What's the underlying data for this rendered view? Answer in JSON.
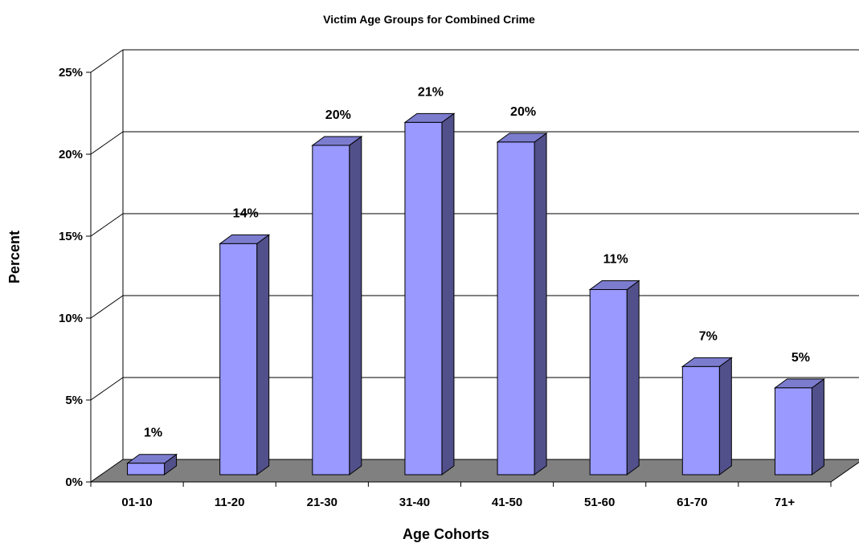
{
  "chart_data": {
    "type": "bar",
    "title": "Victim Age Groups for Combined Crime",
    "xlabel": "Age Cohorts",
    "ylabel": "Percent",
    "categories": [
      "01-10",
      "11-20",
      "21-30",
      "31-40",
      "41-50",
      "51-60",
      "61-70",
      "71+"
    ],
    "values": [
      0.7,
      14.1,
      20.1,
      21.5,
      20.3,
      11.3,
      6.6,
      5.3
    ],
    "data_labels": [
      "1%",
      "14%",
      "20%",
      "21%",
      "20%",
      "11%",
      "7%",
      "5%"
    ],
    "y_ticks": [
      "0%",
      "5%",
      "10%",
      "15%",
      "20%",
      "25%"
    ],
    "ylim": [
      0,
      25
    ],
    "grid": true,
    "three_d": true,
    "colors": {
      "bar_front": "#9999ff",
      "bar_side": "#52508a",
      "bar_top": "#7c7ccf",
      "floor": "#808080",
      "gridline": "#000000"
    }
  }
}
